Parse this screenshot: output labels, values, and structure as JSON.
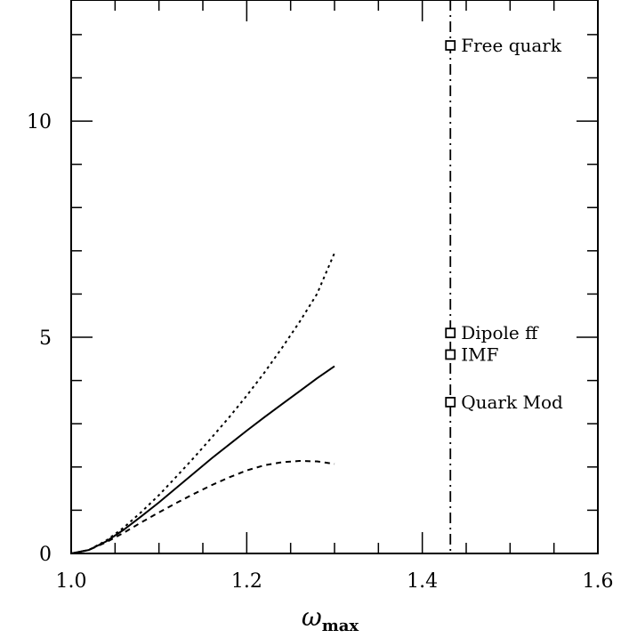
{
  "chart_data": {
    "type": "line",
    "xlabel": "ω",
    "xlabel_sub": "max",
    "ylabel": "",
    "xlim": [
      1.0,
      1.6
    ],
    "ylim": [
      0,
      12.8
    ],
    "x_ticks": [
      {
        "value": 1.0,
        "label": "1.0"
      },
      {
        "value": 1.2,
        "label": "1.2"
      },
      {
        "value": 1.4,
        "label": "1.4"
      },
      {
        "value": 1.6,
        "label": "1.6"
      }
    ],
    "y_ticks": [
      {
        "value": 0,
        "label": "0"
      },
      {
        "value": 5,
        "label": "5"
      },
      {
        "value": 10,
        "label": "10"
      }
    ],
    "x_minor_step": 0.05,
    "y_minor_step": 1,
    "series": [
      {
        "style": "solid",
        "x": [
          1.0,
          1.02,
          1.04,
          1.06,
          1.08,
          1.1,
          1.12,
          1.14,
          1.16,
          1.18,
          1.2,
          1.22,
          1.24,
          1.26,
          1.28,
          1.3
        ],
        "y": [
          0,
          0.08,
          0.28,
          0.55,
          0.86,
          1.18,
          1.52,
          1.86,
          2.2,
          2.52,
          2.84,
          3.15,
          3.45,
          3.75,
          4.05,
          4.33
        ]
      },
      {
        "style": "dotted",
        "x": [
          1.0,
          1.02,
          1.04,
          1.06,
          1.08,
          1.1,
          1.12,
          1.14,
          1.16,
          1.18,
          1.2,
          1.22,
          1.24,
          1.26,
          1.28,
          1.3
        ],
        "y": [
          0,
          0.08,
          0.3,
          0.6,
          0.96,
          1.35,
          1.78,
          2.22,
          2.68,
          3.15,
          3.65,
          4.18,
          4.75,
          5.35,
          6.0,
          6.95
        ]
      },
      {
        "style": "dashed",
        "x": [
          1.0,
          1.02,
          1.04,
          1.06,
          1.08,
          1.1,
          1.12,
          1.14,
          1.16,
          1.18,
          1.2,
          1.22,
          1.24,
          1.26,
          1.28,
          1.3
        ],
        "y": [
          0,
          0.08,
          0.26,
          0.48,
          0.72,
          0.95,
          1.17,
          1.38,
          1.58,
          1.76,
          1.92,
          2.04,
          2.11,
          2.14,
          2.13,
          2.07
        ]
      }
    ],
    "vertical_line": {
      "x": 1.432,
      "style": "dash-dot"
    },
    "points": [
      {
        "label": "Free quark",
        "x": 1.432,
        "y": 11.75
      },
      {
        "label": "Dipole ff",
        "x": 1.432,
        "y": 5.1
      },
      {
        "label": "IMF",
        "x": 1.432,
        "y": 4.6
      },
      {
        "label": "Quark Mod",
        "x": 1.432,
        "y": 3.5
      }
    ]
  }
}
